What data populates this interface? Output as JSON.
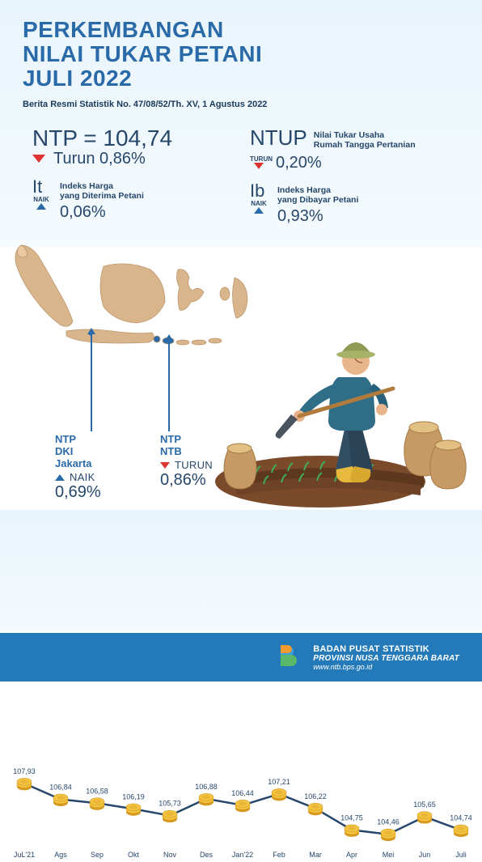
{
  "header": {
    "title_l1": "PERKEMBANGAN",
    "title_l2": "NILAI TUKAR PETANI",
    "title_l3": "JULI 2022",
    "subtitle": "Berita Resmi Statistik No. 47/08/52/Th. XV, 1 Agustus 2022",
    "title_color": "#2a6aa8"
  },
  "metrics": {
    "ntp": {
      "label": "NTP = 104,74",
      "trend_dir": "down",
      "trend_text": "Turun 0,86%"
    },
    "ntup": {
      "label": "NTUP",
      "desc_l1": "Nilai Tukar Usaha",
      "desc_l2": "Rumah Tangga Pertanian",
      "trend_dir": "down",
      "trend_cap": "TURUN",
      "trend_value": "0,20%"
    },
    "it": {
      "label": "It",
      "desc_l1": "Indeks Harga",
      "desc_l2": "yang Diterima Petani",
      "trend_dir": "up",
      "trend_cap": "NAIK",
      "trend_value": "0,06%"
    },
    "ib": {
      "label": "Ib",
      "desc_l1": "Indeks Harga",
      "desc_l2": "yang Dibayar Petani",
      "trend_dir": "up",
      "trend_cap": "NAIK",
      "trend_value": "0,93%"
    }
  },
  "map": {
    "land_color": "#d8b58b",
    "outline_color": "#6b8fad",
    "highlight_color": "#2a6aa8",
    "callouts": [
      {
        "l1": "NTP",
        "l2": "DKI Jakarta",
        "dir": "up",
        "word": "NAIK",
        "pct": "0,69%"
      },
      {
        "l1": "NTP",
        "l2": "NTB",
        "dir": "down",
        "word": "TURUN",
        "pct": "0,86%"
      }
    ]
  },
  "chart": {
    "type": "line",
    "months": [
      "JuL'21",
      "Ags",
      "Sep",
      "Okt",
      "Nov",
      "Des",
      "Jan'22",
      "Feb",
      "Mar",
      "Apr",
      "Mei",
      "Jun",
      "Juli"
    ],
    "values": [
      107.93,
      106.84,
      106.58,
      106.19,
      105.73,
      106.88,
      106.44,
      107.21,
      106.22,
      104.75,
      104.46,
      105.65,
      104.74
    ],
    "labels": [
      "107,93",
      "106,84",
      "106,58",
      "106,19",
      "105,73",
      "106,88",
      "106,44",
      "107,21",
      "106,22",
      "104,75",
      "104,46",
      "105,65",
      "104,74"
    ],
    "ymin": 104.0,
    "ymax": 108.2,
    "line_color": "#26476b",
    "coin_fill": "#f4c542",
    "coin_shade": "#d79a1f",
    "label_fontsize": 9,
    "axis_fontsize": 9,
    "axis_color": "#26476b"
  },
  "footer": {
    "org_l1": "BADAN PUSAT STATISTIK",
    "org_l2": "PROVINSI NUSA TENGGARA BARAT",
    "url": "www.ntb.bps.go.id",
    "bg": "#247ab8"
  },
  "colors": {
    "text_primary": "#26476b",
    "down": "#d33",
    "up": "#2a6aa8",
    "band_bg": "#eaf5fc"
  }
}
